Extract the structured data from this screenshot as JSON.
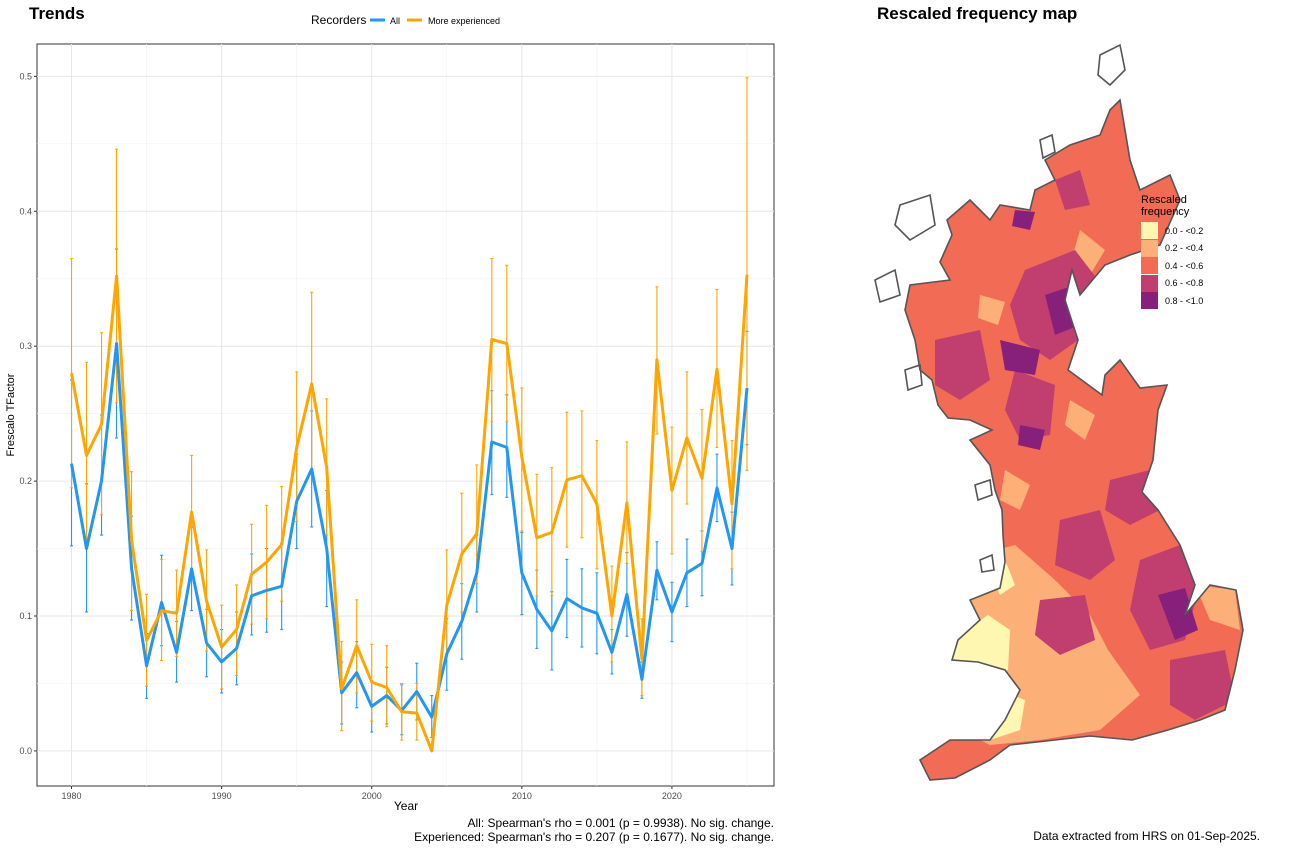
{
  "trends": {
    "title": "Trends",
    "stat_all": "All: Spearman's rho = 0.001 (p = 0.9938). No sig. change.",
    "stat_experienced": "Experienced: Spearman's rho = 0.207 (p = 0.1677). No sig. change."
  },
  "map": {
    "title": "Rescaled frequency map",
    "legend_title_1": "Rescaled",
    "legend_title_2": "frequency",
    "legend": [
      {
        "label": "0.0 - <0.2",
        "color": "#FDF7B2"
      },
      {
        "label": "0.2 - <0.4",
        "color": "#FCB077"
      },
      {
        "label": "0.4 - <0.6",
        "color": "#F26B55"
      },
      {
        "label": "0.6 - <0.8",
        "color": "#C03F6F"
      },
      {
        "label": "0.8 - <1.0",
        "color": "#86207A"
      }
    ],
    "extract_note": "Data extracted from HRS on 01-Sep-2025."
  },
  "chart_data": {
    "type": "line",
    "title": "Trends",
    "xlabel": "Year",
    "ylabel": "Frescalo TFactor",
    "xlim": [
      1977.7,
      2026.8
    ],
    "ylim": [
      -0.026,
      0.524
    ],
    "xticks": [
      1980,
      1990,
      2000,
      2010,
      2020
    ],
    "yticks": [
      0.0,
      0.1,
      0.2,
      0.3,
      0.4,
      0.5
    ],
    "ytick_labels": [
      "0.0",
      "0.1",
      "0.2",
      "0.3",
      "0.4",
      "0.5"
    ],
    "grid": true,
    "legend_title": "Recorders",
    "legend_position": "top",
    "x": [
      1980,
      1981,
      1982,
      1983,
      1984,
      1985,
      1986,
      1987,
      1988,
      1989,
      1990,
      1991,
      1992,
      1993,
      1994,
      1995,
      1996,
      1997,
      1998,
      1999,
      2000,
      2001,
      2002,
      2003,
      2004,
      2005,
      2006,
      2007,
      2008,
      2009,
      2010,
      2011,
      2012,
      2013,
      2014,
      2015,
      2016,
      2017,
      2018,
      2019,
      2020,
      2021,
      2022,
      2023,
      2024,
      2025
    ],
    "series": [
      {
        "name": "All",
        "color": "#2196F3",
        "values": [
          0.213,
          0.15,
          0.2,
          0.302,
          0.135,
          0.063,
          0.11,
          0.073,
          0.135,
          0.08,
          0.066,
          0.076,
          0.115,
          0.119,
          0.122,
          0.185,
          0.209,
          0.15,
          0.043,
          0.058,
          0.033,
          0.041,
          0.03,
          0.044,
          0.025,
          0.072,
          0.096,
          0.132,
          0.229,
          0.225,
          0.132,
          0.105,
          0.089,
          0.113,
          0.106,
          0.102,
          0.073,
          0.116,
          0.053,
          0.134,
          0.103,
          0.132,
          0.139,
          0.195,
          0.15,
          0.269
        ],
        "lower": [
          0.152,
          0.103,
          0.16,
          0.232,
          0.097,
          0.039,
          0.078,
          0.051,
          0.104,
          0.055,
          0.043,
          0.049,
          0.086,
          0.088,
          0.09,
          0.15,
          0.166,
          0.107,
          0.02,
          0.032,
          0.014,
          0.02,
          0.012,
          0.023,
          0.01,
          0.045,
          0.068,
          0.103,
          0.19,
          0.188,
          0.101,
          0.076,
          0.06,
          0.084,
          0.077,
          0.072,
          0.057,
          0.085,
          0.039,
          0.112,
          0.081,
          0.107,
          0.115,
          0.17,
          0.123,
          0.227
        ],
        "upper": [
          0.275,
          0.198,
          0.249,
          0.372,
          0.174,
          0.087,
          0.145,
          0.096,
          0.166,
          0.105,
          0.09,
          0.103,
          0.146,
          0.15,
          0.154,
          0.22,
          0.252,
          0.193,
          0.066,
          0.081,
          0.052,
          0.062,
          0.049,
          0.065,
          0.041,
          0.098,
          0.124,
          0.16,
          0.267,
          0.264,
          0.162,
          0.134,
          0.118,
          0.142,
          0.135,
          0.132,
          0.09,
          0.147,
          0.066,
          0.155,
          0.125,
          0.157,
          0.163,
          0.22,
          0.177,
          0.311
        ]
      },
      {
        "name": "More experienced",
        "color": "#FFA500",
        "values": [
          0.28,
          0.219,
          0.242,
          0.352,
          0.156,
          0.082,
          0.104,
          0.102,
          0.177,
          0.111,
          0.077,
          0.09,
          0.131,
          0.14,
          0.153,
          0.225,
          0.272,
          0.21,
          0.046,
          0.078,
          0.051,
          0.047,
          0.029,
          0.028,
          0.0,
          0.108,
          0.146,
          0.161,
          0.305,
          0.302,
          0.218,
          0.158,
          0.162,
          0.201,
          0.204,
          0.183,
          0.1,
          0.184,
          0.068,
          0.29,
          0.193,
          0.232,
          0.202,
          0.283,
          0.183,
          0.353
        ],
        "lower": [
          0.195,
          0.15,
          0.175,
          0.258,
          0.104,
          0.048,
          0.067,
          0.07,
          0.134,
          0.074,
          0.046,
          0.056,
          0.094,
          0.098,
          0.111,
          0.17,
          0.205,
          0.16,
          0.015,
          0.043,
          0.022,
          0.018,
          0.008,
          0.008,
          0.0,
          0.07,
          0.103,
          0.124,
          0.244,
          0.244,
          0.163,
          0.115,
          0.115,
          0.151,
          0.158,
          0.135,
          0.066,
          0.139,
          0.041,
          0.235,
          0.146,
          0.183,
          0.148,
          0.225,
          0.135,
          0.208
        ],
        "upper": [
          0.365,
          0.288,
          0.31,
          0.446,
          0.207,
          0.116,
          0.142,
          0.134,
          0.219,
          0.149,
          0.108,
          0.123,
          0.168,
          0.182,
          0.196,
          0.281,
          0.34,
          0.261,
          0.081,
          0.112,
          0.079,
          0.078,
          0.05,
          0.05,
          0.005,
          0.149,
          0.191,
          0.212,
          0.365,
          0.36,
          0.269,
          0.205,
          0.21,
          0.251,
          0.252,
          0.23,
          0.137,
          0.229,
          0.098,
          0.344,
          0.24,
          0.281,
          0.253,
          0.342,
          0.23,
          0.499
        ]
      }
    ]
  }
}
